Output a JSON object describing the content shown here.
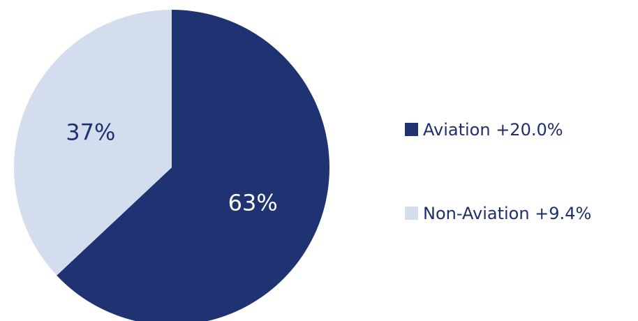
{
  "chart_data": {
    "type": "pie",
    "slices": [
      {
        "label": "Aviation",
        "value": 63,
        "value_label": "63%",
        "legend": "Aviation +20.0%",
        "color": "#1f3373",
        "label_color": "#ffffff"
      },
      {
        "label": "Non-Aviation",
        "value": 37,
        "value_label": "37%",
        "legend": "Non-Aviation +9.4%",
        "color": "#d4ddee",
        "label_color": "#1f3373"
      }
    ],
    "start_angle": "12 o'clock",
    "direction": "clockwise",
    "legend_position": "right"
  }
}
